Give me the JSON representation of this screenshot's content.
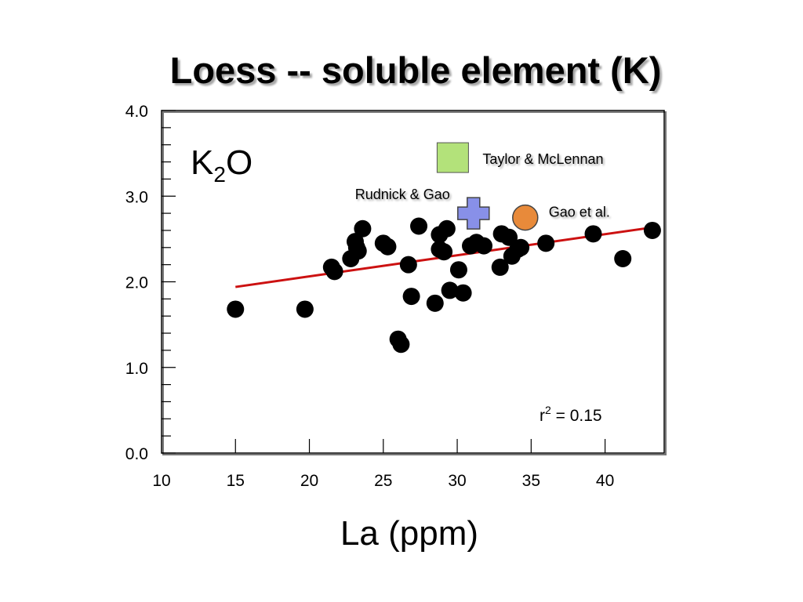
{
  "chart_data": {
    "type": "scatter",
    "title": "Loess -- soluble element (K)",
    "panel_label": {
      "base": "K",
      "sub": "2",
      "rest": "O"
    },
    "xlabel": "La (ppm)",
    "ylabel": "",
    "xlim": [
      10,
      44
    ],
    "ylim": [
      0,
      4
    ],
    "x_ticks": [
      10,
      15,
      20,
      25,
      30,
      35,
      40
    ],
    "x_tick_labels": [
      "10",
      "15",
      "20",
      "25",
      "30",
      "35",
      "40"
    ],
    "y_ticks": [
      0,
      1,
      2,
      3,
      4
    ],
    "y_tick_labels": [
      "0.0",
      "1.0",
      "2.0",
      "3.0",
      "4.0"
    ],
    "grid": false,
    "series": [
      {
        "marker": "circle",
        "color": "#000000",
        "points": [
          [
            15.0,
            1.68
          ],
          [
            19.7,
            1.68
          ],
          [
            21.5,
            2.17
          ],
          [
            21.7,
            2.12
          ],
          [
            22.8,
            2.27
          ],
          [
            23.1,
            2.47
          ],
          [
            23.2,
            2.4
          ],
          [
            23.3,
            2.36
          ],
          [
            23.6,
            2.62
          ],
          [
            25.0,
            2.45
          ],
          [
            25.3,
            2.41
          ],
          [
            26.0,
            1.33
          ],
          [
            26.2,
            1.27
          ],
          [
            26.7,
            2.2
          ],
          [
            26.9,
            1.83
          ],
          [
            27.4,
            2.65
          ],
          [
            28.5,
            1.75
          ],
          [
            28.8,
            2.55
          ],
          [
            28.8,
            2.38
          ],
          [
            29.1,
            2.35
          ],
          [
            29.3,
            2.62
          ],
          [
            29.5,
            1.9
          ],
          [
            30.1,
            2.14
          ],
          [
            30.4,
            1.87
          ],
          [
            30.9,
            2.42
          ],
          [
            31.3,
            2.46
          ],
          [
            31.8,
            2.42
          ],
          [
            32.9,
            2.17
          ],
          [
            33.0,
            2.56
          ],
          [
            33.5,
            2.52
          ],
          [
            33.7,
            2.3
          ],
          [
            34.1,
            2.38
          ],
          [
            34.3,
            2.4
          ],
          [
            36.0,
            2.45
          ],
          [
            39.2,
            2.56
          ],
          [
            41.2,
            2.27
          ],
          [
            43.2,
            2.6
          ]
        ]
      }
    ],
    "fit_line": {
      "x": [
        15,
        43
      ],
      "y": [
        1.94,
        2.63
      ],
      "color": "#cc1111"
    },
    "references": [
      {
        "label": "Taylor & McLennan",
        "marker": "square",
        "color": "#b3e27a",
        "x": 29.7,
        "y": 3.45
      },
      {
        "label": "Rudnick & Gao",
        "marker": "cross",
        "color": "#8890e8",
        "x": 31.1,
        "y": 2.8
      },
      {
        "label": "Gao et al.",
        "marker": "circle",
        "color": "#e88a3a",
        "x": 34.6,
        "y": 2.75
      }
    ],
    "annotation": {
      "base": "r",
      "sup": "2",
      "rest": " = 0.15"
    }
  }
}
